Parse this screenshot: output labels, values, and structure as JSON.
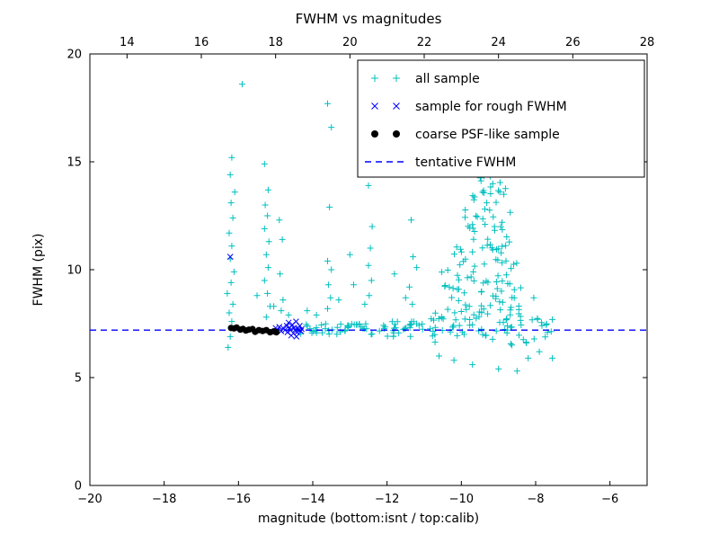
{
  "chart_data": {
    "type": "scatter",
    "title": "FWHM vs magnitudes",
    "xlabel": "magnitude (bottom:isnt / top:calib)",
    "ylabel": "FWHM (pix)",
    "grid": false,
    "axes": {
      "x_bottom": {
        "range": [
          -20,
          -5
        ],
        "tick_values": [
          -20,
          -18,
          -16,
          -14,
          -12,
          -10,
          -8,
          -6
        ],
        "tick_labels": [
          "−20",
          "−18",
          "−16",
          "−14",
          "−12",
          "−10",
          "−8",
          "−6"
        ]
      },
      "x_top": {
        "range": [
          13,
          28
        ],
        "tick_values": [
          14,
          16,
          18,
          20,
          22,
          24,
          26,
          28
        ],
        "tick_labels": [
          "14",
          "16",
          "18",
          "20",
          "22",
          "24",
          "26",
          "28"
        ]
      },
      "y": {
        "range": [
          0,
          20
        ],
        "tick_values": [
          0,
          5,
          10,
          15,
          20
        ],
        "tick_labels": [
          "0",
          "5",
          "10",
          "15",
          "20"
        ]
      }
    },
    "legend": {
      "position": "upper right",
      "entries": [
        {
          "label": "all sample",
          "marker": "plus",
          "color": "#00bfbf"
        },
        {
          "label": "sample for rough FWHM",
          "marker": "x",
          "color": "#0000ff"
        },
        {
          "label": "coarse PSF-like sample",
          "marker": "dot",
          "color": "#000000"
        },
        {
          "label": "tentative FWHM",
          "marker": "dashed-line",
          "color": "#0000ff"
        }
      ]
    },
    "reference_lines": [
      {
        "label": "tentative FWHM",
        "y": 7.2,
        "style": "dashed",
        "color": "#0000ff"
      }
    ],
    "seed": 7,
    "series": [
      {
        "name": "all sample",
        "marker": "plus",
        "color": "#00bfbf",
        "points": [
          [
            -16.28,
            6.4
          ],
          [
            -16.22,
            6.9
          ],
          [
            -16.18,
            7.6
          ],
          [
            -16.25,
            8.0
          ],
          [
            -16.15,
            8.4
          ],
          [
            -16.3,
            8.9
          ],
          [
            -16.2,
            9.4
          ],
          [
            -16.12,
            9.9
          ],
          [
            -16.22,
            10.5
          ],
          [
            -16.18,
            11.1
          ],
          [
            -16.25,
            11.7
          ],
          [
            -16.15,
            12.4
          ],
          [
            -16.2,
            13.1
          ],
          [
            -16.1,
            13.6
          ],
          [
            -16.22,
            14.4
          ],
          [
            -16.18,
            15.2
          ],
          [
            -15.9,
            18.6
          ],
          [
            -15.3,
            14.9
          ],
          [
            -15.2,
            13.7
          ],
          [
            -15.28,
            13.0
          ],
          [
            -15.22,
            12.5
          ],
          [
            -15.3,
            11.9
          ],
          [
            -15.18,
            11.3
          ],
          [
            -15.25,
            10.7
          ],
          [
            -15.2,
            10.1
          ],
          [
            -15.3,
            9.5
          ],
          [
            -15.22,
            8.9
          ],
          [
            -15.15,
            8.3
          ],
          [
            -15.25,
            7.8
          ],
          [
            -14.9,
            12.3
          ],
          [
            -14.82,
            11.4
          ],
          [
            -14.88,
            9.8
          ],
          [
            -14.8,
            8.6
          ],
          [
            -14.85,
            8.1
          ],
          [
            -15.5,
            8.8
          ],
          [
            -15.05,
            8.3
          ],
          [
            -14.65,
            7.9
          ],
          [
            -14.15,
            8.1
          ],
          [
            -13.9,
            7.9
          ],
          [
            -13.6,
            17.7
          ],
          [
            -13.5,
            16.6
          ],
          [
            -13.55,
            12.9
          ],
          [
            -13.6,
            10.4
          ],
          [
            -13.5,
            10.0
          ],
          [
            -13.58,
            9.3
          ],
          [
            -13.52,
            8.7
          ],
          [
            -13.6,
            8.2
          ],
          [
            -13.3,
            8.6
          ],
          [
            -13.0,
            10.7
          ],
          [
            -12.9,
            9.3
          ],
          [
            -12.6,
            8.4
          ],
          [
            -11.8,
            9.8
          ],
          [
            -11.5,
            8.7
          ],
          [
            -11.2,
            10.1
          ],
          [
            -12.5,
            13.9
          ],
          [
            -12.4,
            12.0
          ],
          [
            -12.45,
            11.0
          ],
          [
            -12.5,
            10.2
          ],
          [
            -12.42,
            9.5
          ],
          [
            -12.48,
            8.8
          ],
          [
            -11.35,
            12.3
          ],
          [
            -11.3,
            10.6
          ],
          [
            -11.4,
            9.2
          ],
          [
            -11.32,
            8.4
          ],
          [
            -10.6,
            6.0
          ],
          [
            -10.2,
            5.8
          ],
          [
            -9.7,
            5.6
          ],
          [
            -9.0,
            5.4
          ],
          [
            -8.5,
            5.3
          ],
          [
            -8.2,
            5.9
          ],
          [
            -7.9,
            6.2
          ],
          [
            -7.55,
            5.9
          ],
          [
            -8.05,
            8.7
          ]
        ],
        "clusters": [
          {
            "x_min": -14.35,
            "x_max": -12.0,
            "y_min": 7.0,
            "y_max": 7.5,
            "n": 45
          },
          {
            "x_min": -12.0,
            "x_max": -11.0,
            "y_min": 6.9,
            "y_max": 7.6,
            "n": 25
          },
          {
            "x_min": -11.0,
            "x_max": -8.2,
            "y_min": 6.5,
            "y_max": 8.2,
            "n": 70
          },
          {
            "x_min": -10.6,
            "x_max": -8.4,
            "y_min": 8.2,
            "y_max": 10.0,
            "n": 45
          },
          {
            "x_min": -10.2,
            "x_max": -8.5,
            "y_min": 10.0,
            "y_max": 11.5,
            "n": 30
          },
          {
            "x_min": -9.9,
            "x_max": -8.6,
            "y_min": 11.5,
            "y_max": 12.8,
            "n": 20
          },
          {
            "x_min": -9.7,
            "x_max": -8.8,
            "y_min": 12.8,
            "y_max": 13.8,
            "n": 14
          },
          {
            "x_min": -9.5,
            "x_max": -8.9,
            "y_min": 13.8,
            "y_max": 14.6,
            "n": 8
          },
          {
            "x_min": -8.4,
            "x_max": -7.5,
            "y_min": 6.4,
            "y_max": 7.8,
            "n": 12
          }
        ]
      },
      {
        "name": "sample for rough FWHM",
        "marker": "x",
        "color": "#0000ff",
        "points": [
          [
            -16.22,
            10.6
          ],
          [
            -15.0,
            7.3
          ],
          [
            -14.95,
            7.2
          ],
          [
            -14.9,
            7.35
          ],
          [
            -14.85,
            7.15
          ],
          [
            -14.8,
            7.3
          ],
          [
            -14.75,
            7.2
          ],
          [
            -14.7,
            7.4
          ],
          [
            -14.68,
            7.1
          ],
          [
            -14.62,
            7.3
          ],
          [
            -14.6,
            7.2
          ],
          [
            -14.55,
            7.45
          ],
          [
            -14.52,
            7.05
          ],
          [
            -14.5,
            7.3
          ],
          [
            -14.48,
            7.2
          ],
          [
            -14.45,
            7.6
          ],
          [
            -14.42,
            7.1
          ],
          [
            -14.4,
            7.3
          ],
          [
            -14.38,
            7.2
          ],
          [
            -14.35,
            7.4
          ],
          [
            -14.32,
            7.15
          ],
          [
            -14.3,
            7.25
          ],
          [
            -14.58,
            6.95
          ],
          [
            -14.65,
            7.55
          ],
          [
            -14.44,
            6.9
          ]
        ],
        "clusters": []
      },
      {
        "name": "coarse PSF-like sample",
        "marker": "dot",
        "color": "#000000",
        "points": [
          [
            -16.2,
            7.3
          ],
          [
            -16.12,
            7.28
          ],
          [
            -16.05,
            7.32
          ],
          [
            -15.95,
            7.22
          ],
          [
            -15.88,
            7.26
          ],
          [
            -15.8,
            7.18
          ],
          [
            -15.72,
            7.22
          ],
          [
            -15.62,
            7.25
          ],
          [
            -15.55,
            7.12
          ],
          [
            -15.45,
            7.2
          ],
          [
            -15.35,
            7.16
          ],
          [
            -15.25,
            7.2
          ],
          [
            -15.15,
            7.1
          ],
          [
            -15.05,
            7.14
          ],
          [
            -14.98,
            7.1
          ]
        ],
        "clusters": []
      }
    ]
  }
}
